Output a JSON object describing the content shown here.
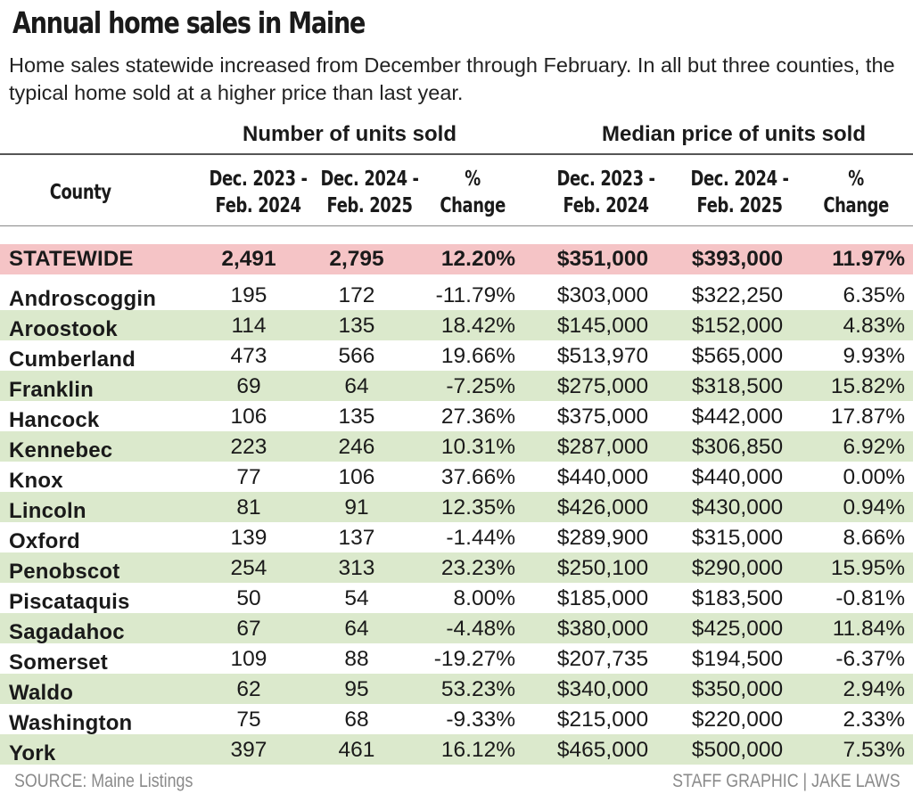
{
  "title": "Annual home sales in Maine",
  "subtitle": "Home sales statewide increased from December through February. In all but three counties, the typical home sold at a higher price than last year.",
  "source": "SOURCE: Maine Listings",
  "credit": "STAFF GRAPHIC | JAKE LAWS",
  "colors": {
    "statewide_row": "#f5c4c6",
    "band_row": "#dbe9cc"
  },
  "chart_data": {
    "type": "table",
    "groups": [
      {
        "label": "Number of units sold"
      },
      {
        "label": "Median price of units sold"
      }
    ],
    "headers": [
      "County",
      "Dec. 2023 -\nFeb. 2024",
      "Dec. 2024 -\nFeb. 2025",
      "%\nChange",
      "Dec. 2023 -\nFeb. 2024",
      "Dec. 2024 -\nFeb. 2025",
      "%\nChange"
    ],
    "rows": [
      [
        "STATEWIDE",
        "2,491",
        "2,795",
        "12.20%",
        "$351,000",
        "$393,000",
        "11.97%"
      ],
      [
        "Androscoggin",
        "195",
        "172",
        "-11.79%",
        "$303,000",
        "$322,250",
        "6.35%"
      ],
      [
        "Aroostook",
        "114",
        "135",
        "18.42%",
        "$145,000",
        "$152,000",
        "4.83%"
      ],
      [
        "Cumberland",
        "473",
        "566",
        "19.66%",
        "$513,970",
        "$565,000",
        "9.93%"
      ],
      [
        "Franklin",
        "69",
        "64",
        "-7.25%",
        "$275,000",
        "$318,500",
        "15.82%"
      ],
      [
        "Hancock",
        "106",
        "135",
        "27.36%",
        "$375,000",
        "$442,000",
        "17.87%"
      ],
      [
        "Kennebec",
        "223",
        "246",
        "10.31%",
        "$287,000",
        "$306,850",
        "6.92%"
      ],
      [
        "Knox",
        "77",
        "106",
        "37.66%",
        "$440,000",
        "$440,000",
        "0.00%"
      ],
      [
        "Lincoln",
        "81",
        "91",
        "12.35%",
        "$426,000",
        "$430,000",
        "0.94%"
      ],
      [
        "Oxford",
        "139",
        "137",
        "-1.44%",
        "$289,900",
        "$315,000",
        "8.66%"
      ],
      [
        "Penobscot",
        "254",
        "313",
        "23.23%",
        "$250,100",
        "$290,000",
        "15.95%"
      ],
      [
        "Piscataquis",
        "50",
        "54",
        "8.00%",
        "$185,000",
        "$183,500",
        "-0.81%"
      ],
      [
        "Sagadahoc",
        "67",
        "64",
        "-4.48%",
        "$380,000",
        "$425,000",
        "11.84%"
      ],
      [
        "Somerset",
        "109",
        "88",
        "-19.27%",
        "$207,735",
        "$194,500",
        "-6.37%"
      ],
      [
        "Waldo",
        "62",
        "95",
        "53.23%",
        "$340,000",
        "$350,000",
        "2.94%"
      ],
      [
        "Washington",
        "75",
        "68",
        "-9.33%",
        "$215,000",
        "$220,000",
        "2.33%"
      ],
      [
        "York",
        "397",
        "461",
        "16.12%",
        "$465,000",
        "$500,000",
        "7.53%"
      ]
    ]
  }
}
